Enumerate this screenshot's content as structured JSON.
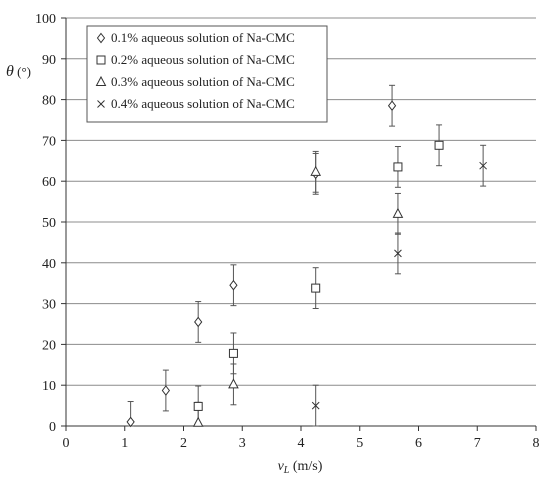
{
  "chart_data": {
    "type": "scatter",
    "title": "",
    "xlabel": {
      "symbol": "v",
      "subscript": "L",
      "unit": " (m/s)"
    },
    "ylabel": {
      "symbol": "θ",
      "unit": " (°)"
    },
    "xlim": [
      0,
      8
    ],
    "ylim": [
      0,
      100
    ],
    "xticks": [
      0,
      1,
      2,
      3,
      4,
      5,
      6,
      7,
      8
    ],
    "yticks": [
      0,
      10,
      20,
      30,
      40,
      50,
      60,
      70,
      80,
      90,
      100
    ],
    "grid": "horizontal",
    "legend_position": "top-left",
    "series": [
      {
        "name": "0.1% aqueous solution of Na-CMC",
        "marker": "diamond",
        "points": [
          {
            "x": 1.1,
            "y": 1,
            "err": 5
          },
          {
            "x": 1.7,
            "y": 8.7,
            "err": 5
          },
          {
            "x": 2.25,
            "y": 25.5,
            "err": 5
          },
          {
            "x": 2.85,
            "y": 34.5,
            "err": 5
          },
          {
            "x": 4.25,
            "y": 61.8,
            "err": 5
          },
          {
            "x": 5.55,
            "y": 78.5,
            "err": 5
          }
        ]
      },
      {
        "name": "0.2% aqueous solution of Na-CMC",
        "marker": "square",
        "points": [
          {
            "x": 2.25,
            "y": 4.8,
            "err": 5
          },
          {
            "x": 2.85,
            "y": 17.8,
            "err": 5
          },
          {
            "x": 4.25,
            "y": 33.8,
            "err": 5
          },
          {
            "x": 5.65,
            "y": 63.5,
            "err": 5
          },
          {
            "x": 6.35,
            "y": 68.8,
            "err": 5
          }
        ]
      },
      {
        "name": "0.3% aqueous solution of Na-CMC",
        "marker": "triangle",
        "points": [
          {
            "x": 2.25,
            "y": 0.8,
            "err": 5
          },
          {
            "x": 2.85,
            "y": 10.2,
            "err": 5
          },
          {
            "x": 4.25,
            "y": 62.3,
            "err": 5
          },
          {
            "x": 5.65,
            "y": 52,
            "err": 5
          }
        ]
      },
      {
        "name": "0.4% aqueous solution of Na-CMC",
        "marker": "cross",
        "points": [
          {
            "x": 4.25,
            "y": 5,
            "err": 5
          },
          {
            "x": 5.65,
            "y": 42.3,
            "err": 5
          },
          {
            "x": 7.1,
            "y": 63.8,
            "err": 5
          }
        ]
      }
    ]
  }
}
